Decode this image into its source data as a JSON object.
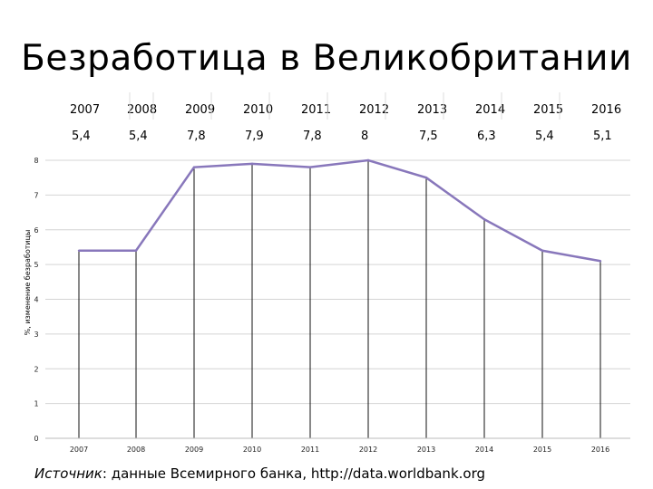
{
  "title": "Безработица в Великобритании",
  "source": {
    "prefix": "Источник",
    "text": ": данные Всемирного банка, http://data.worldbank.org"
  },
  "table": {
    "years": [
      "2007",
      "2008",
      "2009",
      "2010",
      "2011",
      "2012",
      "2013",
      "2014",
      "2015",
      "2016"
    ],
    "values": [
      "5,4",
      "5,4",
      "7,8",
      "7,9",
      "7,8",
      "8",
      "7,5",
      "6,3",
      "5,4",
      "5,1"
    ]
  },
  "chart_data": {
    "type": "line",
    "categories": [
      "2007",
      "2008",
      "2009",
      "2010",
      "2011",
      "2012",
      "2013",
      "2014",
      "2015",
      "2016"
    ],
    "series": [
      {
        "values": [
          5.4,
          5.4,
          7.8,
          7.9,
          7.8,
          8.0,
          7.5,
          6.3,
          5.4,
          5.1
        ]
      }
    ],
    "title": "",
    "xlabel": "",
    "ylabel": "%, изменение безработицы",
    "ylim": [
      0,
      8
    ],
    "yticks": [
      0,
      1,
      2,
      3,
      4,
      5,
      6,
      7,
      8
    ],
    "grid": true,
    "line_color": "#8877bb"
  }
}
